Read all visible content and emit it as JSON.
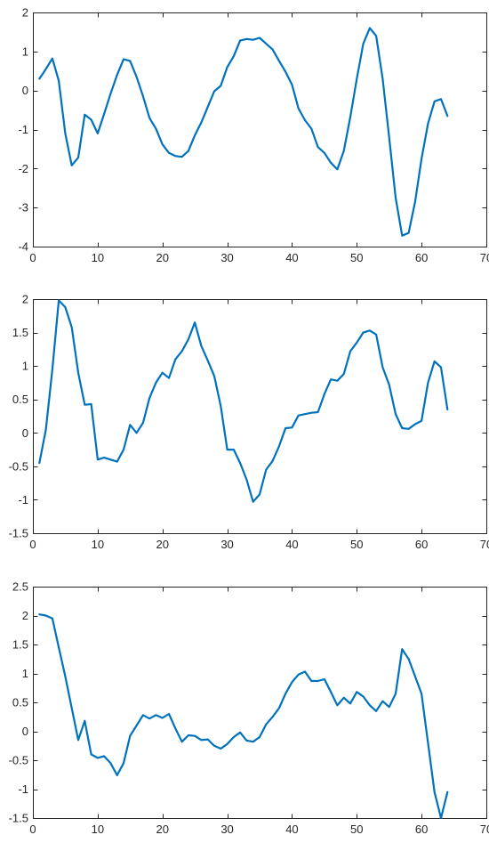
{
  "colors": {
    "line": "#0072BD",
    "axis": "#262626",
    "background": "#ffffff"
  },
  "chart_data": [
    {
      "type": "line",
      "title": "",
      "xlabel": "",
      "ylabel": "",
      "xlim": [
        0,
        70
      ],
      "ylim": [
        -4,
        2
      ],
      "xticks": [
        0,
        10,
        20,
        30,
        40,
        50,
        60,
        70
      ],
      "yticks": [
        -4,
        -3,
        -2,
        -1,
        0,
        1,
        2
      ],
      "grid": false,
      "series": [
        {
          "x": [
            1,
            2,
            3,
            4,
            5,
            6,
            7,
            8,
            9,
            10,
            11,
            12,
            13,
            14,
            15,
            16,
            17,
            18,
            19,
            20,
            21,
            22,
            23,
            24,
            25,
            26,
            27,
            28,
            29,
            30,
            31,
            32,
            33,
            34,
            35,
            36,
            37,
            38,
            39,
            40,
            41,
            42,
            43,
            44,
            45,
            46,
            47,
            48,
            49,
            50,
            51,
            52,
            53,
            54,
            55,
            56,
            57,
            58,
            59,
            60,
            61,
            62,
            63,
            64
          ],
          "values": [
            0.3,
            0.55,
            0.82,
            0.25,
            -1.1,
            -1.92,
            -1.72,
            -0.62,
            -0.75,
            -1.1,
            -0.6,
            -0.08,
            0.4,
            0.8,
            0.76,
            0.35,
            -0.15,
            -0.7,
            -0.98,
            -1.38,
            -1.6,
            -1.68,
            -1.7,
            -1.55,
            -1.15,
            -0.82,
            -0.42,
            -0.02,
            0.12,
            0.6,
            0.88,
            1.28,
            1.32,
            1.3,
            1.35,
            1.2,
            1.05,
            0.76,
            0.48,
            0.15,
            -0.46,
            -0.76,
            -0.98,
            -1.45,
            -1.6,
            -1.85,
            -2.02,
            -1.55,
            -0.68,
            0.3,
            1.2,
            1.6,
            1.4,
            0.3,
            -1.2,
            -2.75,
            -3.72,
            -3.65,
            -2.85,
            -1.75,
            -0.85,
            -0.28,
            -0.22,
            -0.65
          ]
        }
      ]
    },
    {
      "type": "line",
      "title": "",
      "xlabel": "",
      "ylabel": "",
      "xlim": [
        0,
        70
      ],
      "ylim": [
        -1.5,
        2
      ],
      "xticks": [
        0,
        10,
        20,
        30,
        40,
        50,
        60,
        70
      ],
      "yticks": [
        -1.5,
        -1,
        -0.5,
        0,
        0.5,
        1,
        1.5,
        2
      ],
      "grid": false,
      "series": [
        {
          "x": [
            1,
            2,
            3,
            4,
            5,
            6,
            7,
            8,
            9,
            10,
            11,
            12,
            13,
            14,
            15,
            16,
            17,
            18,
            19,
            20,
            21,
            22,
            23,
            24,
            25,
            26,
            27,
            28,
            29,
            30,
            31,
            32,
            33,
            34,
            35,
            36,
            37,
            38,
            39,
            40,
            41,
            42,
            43,
            44,
            45,
            46,
            47,
            48,
            49,
            50,
            51,
            52,
            53,
            54,
            55,
            56,
            57,
            58,
            59,
            60,
            61,
            62,
            63,
            64
          ],
          "values": [
            -0.45,
            0.05,
            0.95,
            1.98,
            1.88,
            1.58,
            0.9,
            0.42,
            0.43,
            -0.4,
            -0.37,
            -0.4,
            -0.43,
            -0.25,
            0.12,
            0.0,
            0.15,
            0.52,
            0.75,
            0.9,
            0.82,
            1.1,
            1.22,
            1.4,
            1.65,
            1.3,
            1.08,
            0.85,
            0.4,
            -0.25,
            -0.25,
            -0.45,
            -0.7,
            -1.03,
            -0.92,
            -0.55,
            -0.42,
            -0.2,
            0.07,
            0.08,
            0.26,
            0.28,
            0.3,
            0.31,
            0.58,
            0.8,
            0.78,
            0.88,
            1.22,
            1.35,
            1.5,
            1.53,
            1.47,
            0.98,
            0.72,
            0.28,
            0.07,
            0.06,
            0.13,
            0.18,
            0.75,
            1.07,
            0.98,
            0.35
          ]
        }
      ]
    },
    {
      "type": "line",
      "title": "",
      "xlabel": "",
      "ylabel": "",
      "xlim": [
        0,
        70
      ],
      "ylim": [
        -1.5,
        2.5
      ],
      "xticks": [
        0,
        10,
        20,
        30,
        40,
        50,
        60,
        70
      ],
      "yticks": [
        -1.5,
        -1,
        -0.5,
        0,
        0.5,
        1,
        1.5,
        2,
        2.5
      ],
      "grid": false,
      "series": [
        {
          "x": [
            1,
            2,
            3,
            4,
            5,
            6,
            7,
            8,
            9,
            10,
            11,
            12,
            13,
            14,
            15,
            16,
            17,
            18,
            19,
            20,
            21,
            22,
            23,
            24,
            25,
            26,
            27,
            28,
            29,
            30,
            31,
            32,
            33,
            34,
            35,
            36,
            37,
            38,
            39,
            40,
            41,
            42,
            43,
            44,
            45,
            46,
            47,
            48,
            49,
            50,
            51,
            52,
            53,
            54,
            55,
            56,
            57,
            58,
            59,
            60,
            61,
            62,
            63,
            64
          ],
          "values": [
            2.02,
            2.0,
            1.95,
            1.45,
            0.95,
            0.4,
            -0.15,
            0.18,
            -0.4,
            -0.46,
            -0.43,
            -0.55,
            -0.76,
            -0.55,
            -0.08,
            0.1,
            0.28,
            0.22,
            0.28,
            0.23,
            0.3,
            0.05,
            -0.18,
            -0.07,
            -0.08,
            -0.15,
            -0.14,
            -0.25,
            -0.3,
            -0.22,
            -0.1,
            -0.02,
            -0.16,
            -0.18,
            -0.1,
            0.12,
            0.25,
            0.4,
            0.65,
            0.85,
            0.98,
            1.03,
            0.87,
            0.87,
            0.9,
            0.68,
            0.45,
            0.58,
            0.48,
            0.68,
            0.6,
            0.45,
            0.35,
            0.52,
            0.42,
            0.65,
            1.42,
            1.25,
            0.95,
            0.65,
            -0.2,
            -1.05,
            -1.5,
            -1.05
          ]
        }
      ]
    }
  ]
}
